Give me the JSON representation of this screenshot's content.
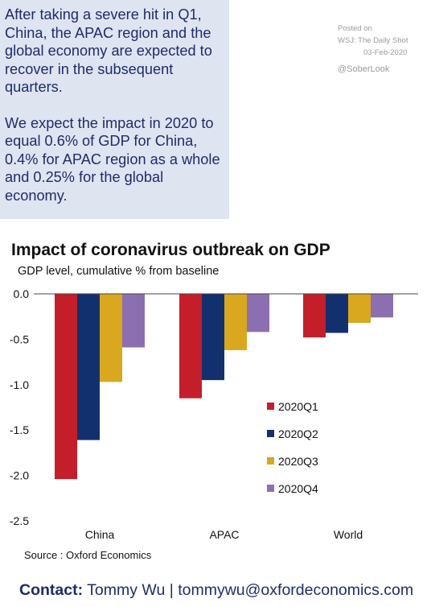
{
  "intro": {
    "paragraph1": "After taking a severe hit in Q1, China, the APAC region and the global economy are expected to recover in the subsequent quarters.",
    "paragraph2": "We expect the impact in 2020 to equal 0.6% of GDP for China, 0.4% for APAC region as a whole and 0.25% for the global economy."
  },
  "watermark": {
    "line1": "Posted on",
    "line2": "WSJ: The Daily Shot",
    "line3": "03-Feb-2020",
    "line4": "@SoberLook"
  },
  "chart_data": {
    "type": "bar",
    "title": "Impact of coronavirus outbreak on GDP",
    "subtitle": "GDP level, cumulative % from baseline",
    "categories": [
      "China",
      "APAC",
      "World"
    ],
    "series": [
      {
        "name": "2020Q1",
        "color": "#c41e2a",
        "values": [
          -2.04,
          -1.15,
          -0.48
        ]
      },
      {
        "name": "2020Q2",
        "color": "#13306e",
        "values": [
          -1.61,
          -0.95,
          -0.43
        ]
      },
      {
        "name": "2020Q3",
        "color": "#d9a81e",
        "values": [
          -0.97,
          -0.62,
          -0.32
        ]
      },
      {
        "name": "2020Q4",
        "color": "#8c6fb0",
        "values": [
          -0.59,
          -0.42,
          -0.26
        ]
      }
    ],
    "ylim": [
      -2.5,
      0.0
    ],
    "yticks": [
      "0.0",
      "-0.5",
      "-1.0",
      "-1.5",
      "-2.0",
      "-2.5"
    ],
    "grid": false,
    "legend_position": "inside-right"
  },
  "source": "Source : Oxford Economics",
  "contact": {
    "label": "Contact:",
    "text": "Tommy Wu | tommywu@oxfordeconomics.com"
  }
}
